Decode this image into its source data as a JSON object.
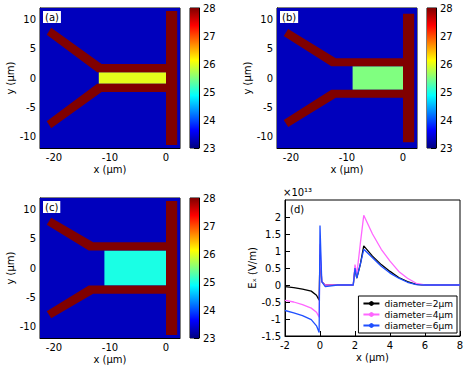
{
  "chart_data": [
    {
      "type": "heatmap",
      "title": "(a)",
      "xlabel": "x (μm)",
      "ylabel": "y (μm)",
      "xlim": [
        -22.5,
        2.5
      ],
      "ylim": [
        -12,
        12
      ],
      "xticks": [
        -20,
        -10,
        0
      ],
      "yticks": [
        -10,
        -5,
        0,
        5,
        10
      ],
      "colorbar": {
        "range": [
          23,
          28
        ],
        "ticks": [
          23,
          24,
          25,
          26,
          27,
          28
        ]
      },
      "background": 23.3,
      "regions": [
        {
          "points": [
            [
              -12,
              -1
            ],
            [
              0,
              -1
            ],
            [
              0,
              1
            ],
            [
              -12,
              1
            ]
          ],
          "value": 26
        },
        {
          "points": [
            [
              0,
              -11.5
            ],
            [
              2,
              -11.5
            ],
            [
              2,
              11.5
            ],
            [
              0,
              11.5
            ]
          ],
          "value": 28
        },
        {
          "points": [
            [
              0,
              1
            ],
            [
              0,
              2.4
            ],
            [
              -11.5,
              2.4
            ],
            [
              -20.5,
              8.6
            ],
            [
              -21.3,
              7.4
            ],
            [
              -12.3,
              1
            ]
          ],
          "value": 28
        },
        {
          "points": [
            [
              0,
              -1
            ],
            [
              0,
              -2.4
            ],
            [
              -11.5,
              -2.4
            ],
            [
              -20.5,
              -8.6
            ],
            [
              -21.3,
              -7.4
            ],
            [
              -12.3,
              -1
            ]
          ],
          "value": 28
        }
      ]
    },
    {
      "type": "heatmap",
      "title": "(b)",
      "xlabel": "x (μm)",
      "ylabel": "y (μm)",
      "xlim": [
        -22.5,
        2.5
      ],
      "ylim": [
        -12,
        12
      ],
      "xticks": [
        -20,
        -10,
        0
      ],
      "yticks": [
        -10,
        -5,
        0,
        5,
        10
      ],
      "colorbar": {
        "range": [
          23,
          28
        ],
        "ticks": [
          23,
          24,
          25,
          26,
          27,
          28
        ]
      },
      "background": 23.3,
      "regions": [
        {
          "points": [
            [
              -9,
              -2
            ],
            [
              0,
              -2
            ],
            [
              0,
              2
            ],
            [
              -9,
              2
            ]
          ],
          "value": 25.5
        },
        {
          "points": [
            [
              0,
              -11
            ],
            [
              2,
              -11
            ],
            [
              2,
              11
            ],
            [
              0,
              11
            ]
          ],
          "value": 28
        },
        {
          "points": [
            [
              0,
              2
            ],
            [
              0,
              3.4
            ],
            [
              -12,
              3.4
            ],
            [
              -20.5,
              8.4
            ],
            [
              -21.3,
              7.2
            ],
            [
              -12.8,
              2
            ]
          ],
          "value": 28
        },
        {
          "points": [
            [
              0,
              -2
            ],
            [
              0,
              -3.4
            ],
            [
              -12,
              -3.4
            ],
            [
              -20.5,
              -8.4
            ],
            [
              -21.3,
              -7.2
            ],
            [
              -12.8,
              -2
            ]
          ],
          "value": 28
        }
      ]
    },
    {
      "type": "heatmap",
      "title": "(c)",
      "xlabel": "x (μm)",
      "ylabel": "y (μm)",
      "xlim": [
        -22.5,
        2.5
      ],
      "ylim": [
        -12,
        12
      ],
      "xticks": [
        -20,
        -10,
        0
      ],
      "yticks": [
        -10,
        -5,
        0,
        5,
        10
      ],
      "colorbar": {
        "range": [
          23,
          28
        ],
        "ticks": [
          23,
          24,
          25,
          26,
          27,
          28
        ]
      },
      "background": 23.3,
      "regions": [
        {
          "points": [
            [
              -11,
              -3
            ],
            [
              0,
              -3
            ],
            [
              0,
              3
            ],
            [
              -11,
              3
            ]
          ],
          "value": 25
        },
        {
          "points": [
            [
              0,
              -11.5
            ],
            [
              2,
              -11.5
            ],
            [
              2,
              11.5
            ],
            [
              0,
              11.5
            ]
          ],
          "value": 28
        },
        {
          "points": [
            [
              0,
              3
            ],
            [
              0,
              4.4
            ],
            [
              -13,
              4.4
            ],
            [
              -20.5,
              8.6
            ],
            [
              -21.3,
              7.4
            ],
            [
              -13.8,
              3
            ]
          ],
          "value": 28
        },
        {
          "points": [
            [
              0,
              -3
            ],
            [
              0,
              -4.4
            ],
            [
              -13,
              -4.4
            ],
            [
              -20.5,
              -8.6
            ],
            [
              -21.3,
              -7.4
            ],
            [
              -13.8,
              -3
            ]
          ],
          "value": 28
        }
      ]
    },
    {
      "type": "line",
      "title": "(d)",
      "xlabel": "x (μm)",
      "ylabel": "Eₓ (V/m)",
      "annotations": [
        "×10¹³"
      ],
      "xlim": [
        -2,
        8
      ],
      "ylim": [
        -1.5,
        2.5
      ],
      "xticks": [
        -2,
        0,
        2,
        4,
        6,
        8
      ],
      "yticks": [
        -1.5,
        -1,
        -0.5,
        0,
        0.5,
        1,
        1.5,
        2
      ],
      "legend": "lower right",
      "x": [
        -2,
        -1.5,
        -1,
        -0.5,
        -0.2,
        -0.05,
        0,
        0.1,
        0.3,
        1,
        1.9,
        2,
        2.1,
        2.3,
        2.5,
        3,
        3.5,
        4,
        4.5,
        5,
        5.5,
        6,
        7,
        8
      ],
      "series": [
        {
          "name": "diameter=2μm",
          "color": "#000000",
          "values": [
            -0.05,
            -0.08,
            -0.12,
            -0.18,
            -0.3,
            -0.45,
            0.9,
            0.1,
            0,
            0,
            0,
            0.5,
            0.2,
            0.6,
            1.15,
            0.85,
            0.6,
            0.4,
            0.22,
            0.1,
            0.02,
            0,
            0,
            0
          ]
        },
        {
          "name": "diameter=4μm",
          "color": "#ff66ff",
          "values": [
            -0.45,
            -0.5,
            -0.58,
            -0.68,
            -0.8,
            -0.95,
            1.2,
            0.1,
            0,
            0,
            0,
            0.6,
            0.3,
            1.2,
            2.05,
            1.5,
            1.05,
            0.7,
            0.4,
            0.2,
            0.05,
            0,
            0,
            0
          ]
        },
        {
          "name": "diameter=6μm",
          "color": "#1f4fff",
          "values": [
            -0.75,
            -0.82,
            -0.9,
            -1.02,
            -1.2,
            -1.4,
            1.75,
            0.1,
            -0.05,
            0,
            0,
            0.5,
            0.2,
            0.6,
            1.05,
            0.8,
            0.55,
            0.35,
            0.2,
            0.08,
            0.01,
            0,
            0,
            0
          ]
        }
      ]
    }
  ]
}
